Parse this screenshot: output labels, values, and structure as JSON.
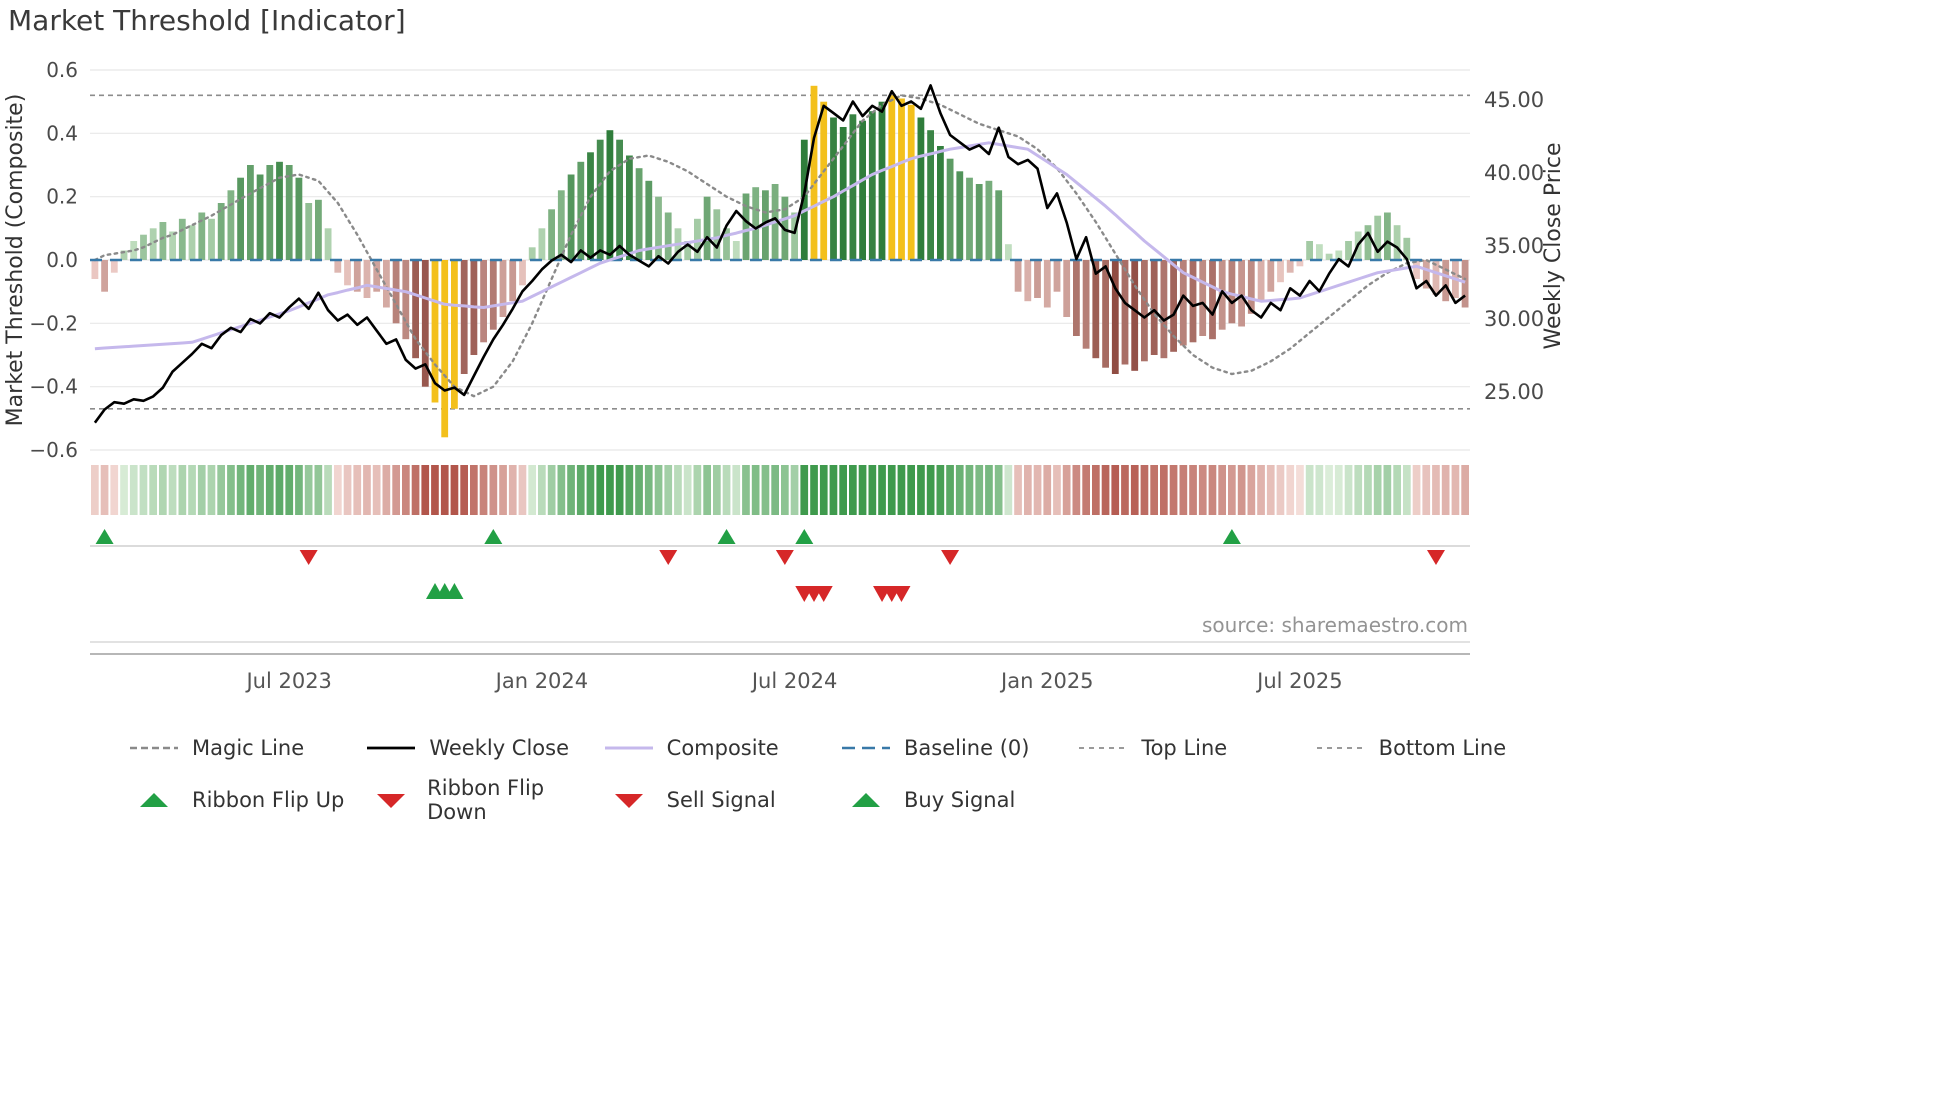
{
  "title": "Market Threshold [Indicator]",
  "source_text": "source: sharemaestro.com",
  "axes": {
    "left_label": "Market Threshold (Composite)",
    "right_label": "Weekly Close Price",
    "left_ticks": [
      {
        "label": "0.6",
        "value": 0.6
      },
      {
        "label": "0.4",
        "value": 0.4
      },
      {
        "label": "0.2",
        "value": 0.2
      },
      {
        "label": "0.0",
        "value": 0.0
      },
      {
        "label": "−0.2",
        "value": -0.2
      },
      {
        "label": "−0.4",
        "value": -0.4
      },
      {
        "label": "−0.6",
        "value": -0.6
      }
    ],
    "right_ticks": [
      {
        "label": "45.00",
        "value": 45
      },
      {
        "label": "40.00",
        "value": 40
      },
      {
        "label": "35.00",
        "value": 35
      },
      {
        "label": "30.00",
        "value": 30
      },
      {
        "label": "25.00",
        "value": 25
      }
    ],
    "x_ticks": [
      {
        "label": "Jul 2023",
        "week": 20
      },
      {
        "label": "Jan 2024",
        "week": 46
      },
      {
        "label": "Jul 2024",
        "week": 72
      },
      {
        "label": "Jan 2025",
        "week": 98
      },
      {
        "label": "Jul 2025",
        "week": 124
      }
    ]
  },
  "colors": {
    "bar_green_light": "#cde6ca",
    "bar_green_dark": "#2f7d3b",
    "bar_red_light": "#f3d4cf",
    "bar_red_dark": "#8e4a40",
    "bar_extreme": "#f3c01c",
    "ribbon_green_light": "#e4f2e1",
    "ribbon_green_dark": "#3f9a4d",
    "ribbon_red_light": "#f8e4e0",
    "ribbon_red_dark": "#b2564b",
    "weekly_close": "#000000",
    "composite": "#c5b8ec",
    "magic": "#8a8a8a",
    "baseline": "#3879a8",
    "threshold_lines": "#8c8c8c",
    "signal_up": "#22a045",
    "signal_down": "#d62728",
    "grid": "#e8e8e8"
  },
  "chart_data": {
    "type": "combo",
    "title": "Market Threshold [Indicator]",
    "x_unit": "week_index",
    "weeks": 142,
    "left_axis_range": [
      -0.6,
      0.6
    ],
    "right_axis_ticks": [
      45,
      40,
      35,
      30,
      25
    ],
    "baseline": 0,
    "top_line": 0.52,
    "bottom_line": -0.47,
    "threshold_bars": [
      -0.06,
      -0.1,
      -0.04,
      0.03,
      0.06,
      0.08,
      0.1,
      0.12,
      0.09,
      0.13,
      0.11,
      0.15,
      0.13,
      0.18,
      0.22,
      0.26,
      0.3,
      0.27,
      0.3,
      0.31,
      0.3,
      0.26,
      0.18,
      0.19,
      0.1,
      -0.04,
      -0.08,
      -0.1,
      -0.12,
      -0.1,
      -0.15,
      -0.2,
      -0.25,
      -0.31,
      -0.4,
      -0.45,
      -0.56,
      -0.47,
      -0.36,
      -0.3,
      -0.26,
      -0.22,
      -0.18,
      -0.13,
      -0.08,
      0.04,
      0.1,
      0.16,
      0.22,
      0.27,
      0.31,
      0.34,
      0.38,
      0.41,
      0.38,
      0.33,
      0.29,
      0.25,
      0.2,
      0.15,
      0.1,
      0.06,
      0.13,
      0.2,
      0.16,
      0.1,
      0.06,
      0.21,
      0.23,
      0.22,
      0.24,
      0.2,
      0.15,
      0.38,
      0.55,
      0.5,
      0.45,
      0.42,
      0.46,
      0.44,
      0.47,
      0.5,
      0.52,
      0.51,
      0.49,
      0.45,
      0.41,
      0.36,
      0.32,
      0.28,
      0.26,
      0.24,
      0.25,
      0.22,
      0.05,
      -0.1,
      -0.13,
      -0.12,
      -0.15,
      -0.1,
      -0.18,
      -0.24,
      -0.28,
      -0.31,
      -0.34,
      -0.36,
      -0.33,
      -0.35,
      -0.32,
      -0.3,
      -0.31,
      -0.29,
      -0.27,
      -0.26,
      -0.24,
      -0.25,
      -0.22,
      -0.2,
      -0.21,
      -0.17,
      -0.13,
      -0.1,
      -0.07,
      -0.04,
      -0.02,
      0.06,
      0.05,
      0.02,
      0.03,
      0.06,
      0.09,
      0.11,
      0.14,
      0.15,
      0.11,
      0.07,
      -0.06,
      -0.09,
      -0.11,
      -0.13,
      -0.12,
      -0.15
    ],
    "extreme_bar_indices": [
      35,
      36,
      37,
      74,
      75,
      82,
      83,
      84
    ],
    "weekly_close": [
      22.9,
      23.8,
      24.3,
      24.2,
      24.5,
      24.4,
      24.7,
      25.3,
      26.4,
      27.0,
      27.6,
      28.3,
      28.0,
      28.9,
      29.4,
      29.1,
      30.0,
      29.7,
      30.4,
      30.1,
      30.8,
      31.4,
      30.7,
      31.8,
      30.6,
      29.9,
      30.3,
      29.6,
      30.1,
      29.2,
      28.3,
      28.6,
      27.2,
      26.6,
      26.9,
      25.6,
      25.1,
      25.3,
      24.8,
      26.1,
      27.4,
      28.6,
      29.6,
      30.7,
      31.9,
      32.6,
      33.4,
      34.0,
      34.4,
      33.9,
      34.7,
      34.2,
      34.7,
      34.4,
      35.0,
      34.4,
      34.0,
      33.6,
      34.3,
      33.8,
      34.6,
      35.1,
      34.6,
      35.6,
      34.9,
      36.4,
      37.4,
      36.7,
      36.2,
      36.6,
      36.9,
      36.1,
      35.9,
      38.6,
      42.4,
      44.6,
      44.1,
      43.6,
      44.9,
      43.9,
      44.6,
      44.2,
      45.6,
      44.6,
      44.9,
      44.4,
      46.0,
      44.1,
      42.6,
      42.1,
      41.6,
      41.9,
      41.3,
      43.1,
      41.1,
      40.6,
      40.9,
      40.3,
      37.6,
      38.6,
      36.6,
      34.1,
      35.6,
      33.1,
      33.6,
      32.1,
      31.1,
      30.6,
      30.1,
      30.6,
      29.9,
      30.3,
      31.6,
      30.9,
      31.1,
      30.3,
      31.9,
      31.1,
      31.6,
      30.6,
      30.1,
      31.1,
      30.6,
      32.1,
      31.6,
      32.6,
      31.9,
      33.1,
      34.1,
      33.6,
      35.1,
      35.9,
      34.6,
      35.3,
      34.9,
      34.1,
      32.1,
      32.6,
      31.6,
      32.3,
      31.1,
      31.6
    ],
    "composite": [
      -0.28,
      -0.278,
      -0.276,
      -0.274,
      -0.272,
      -0.27,
      -0.268,
      -0.266,
      -0.264,
      -0.262,
      -0.26,
      -0.25,
      -0.24,
      -0.23,
      -0.22,
      -0.21,
      -0.2,
      -0.19,
      -0.18,
      -0.17,
      -0.16,
      -0.148,
      -0.135,
      -0.123,
      -0.11,
      -0.103,
      -0.095,
      -0.088,
      -0.08,
      -0.085,
      -0.09,
      -0.095,
      -0.1,
      -0.11,
      -0.12,
      -0.13,
      -0.14,
      -0.143,
      -0.145,
      -0.148,
      -0.15,
      -0.145,
      -0.14,
      -0.135,
      -0.13,
      -0.115,
      -0.1,
      -0.085,
      -0.07,
      -0.055,
      -0.04,
      -0.025,
      -0.01,
      0.0,
      0.01,
      0.02,
      0.03,
      0.035,
      0.04,
      0.045,
      0.05,
      0.055,
      0.06,
      0.065,
      0.07,
      0.078,
      0.085,
      0.093,
      0.1,
      0.11,
      0.12,
      0.13,
      0.14,
      0.155,
      0.17,
      0.185,
      0.2,
      0.218,
      0.235,
      0.253,
      0.27,
      0.283,
      0.295,
      0.308,
      0.32,
      0.328,
      0.335,
      0.343,
      0.35,
      0.355,
      0.36,
      0.365,
      0.37,
      0.365,
      0.36,
      0.355,
      0.35,
      0.33,
      0.31,
      0.29,
      0.27,
      0.245,
      0.22,
      0.195,
      0.17,
      0.143,
      0.115,
      0.088,
      0.06,
      0.035,
      0.01,
      -0.015,
      -0.04,
      -0.055,
      -0.07,
      -0.085,
      -0.1,
      -0.108,
      -0.115,
      -0.123,
      -0.13,
      -0.128,
      -0.125,
      -0.123,
      -0.12,
      -0.11,
      -0.1,
      -0.09,
      -0.08,
      -0.07,
      -0.06,
      -0.05,
      -0.04,
      -0.035,
      -0.03,
      -0.025,
      -0.02,
      -0.03,
      -0.04,
      -0.05,
      -0.06,
      -0.07
    ],
    "magic_line": [
      0.0,
      0.015,
      0.02,
      0.025,
      0.03,
      0.04,
      0.055,
      0.07,
      0.08,
      0.095,
      0.11,
      0.125,
      0.14,
      0.158,
      0.175,
      0.193,
      0.21,
      0.227,
      0.243,
      0.26,
      0.265,
      0.27,
      0.26,
      0.25,
      0.215,
      0.18,
      0.13,
      0.08,
      0.025,
      -0.03,
      -0.085,
      -0.14,
      -0.195,
      -0.25,
      -0.29,
      -0.33,
      -0.365,
      -0.4,
      -0.415,
      -0.43,
      -0.415,
      -0.4,
      -0.36,
      -0.32,
      -0.26,
      -0.2,
      -0.13,
      -0.06,
      0.01,
      0.08,
      0.14,
      0.2,
      0.24,
      0.28,
      0.3,
      0.32,
      0.325,
      0.33,
      0.32,
      0.31,
      0.295,
      0.28,
      0.26,
      0.24,
      0.22,
      0.2,
      0.185,
      0.17,
      0.16,
      0.15,
      0.155,
      0.16,
      0.18,
      0.2,
      0.24,
      0.28,
      0.32,
      0.36,
      0.4,
      0.44,
      0.465,
      0.49,
      0.505,
      0.52,
      0.515,
      0.51,
      0.5,
      0.49,
      0.475,
      0.46,
      0.445,
      0.43,
      0.42,
      0.41,
      0.4,
      0.39,
      0.37,
      0.35,
      0.32,
      0.29,
      0.25,
      0.21,
      0.165,
      0.12,
      0.07,
      0.02,
      -0.03,
      -0.08,
      -0.125,
      -0.17,
      -0.205,
      -0.24,
      -0.27,
      -0.3,
      -0.32,
      -0.34,
      -0.35,
      -0.36,
      -0.355,
      -0.35,
      -0.335,
      -0.32,
      -0.3,
      -0.28,
      -0.255,
      -0.23,
      -0.205,
      -0.18,
      -0.155,
      -0.13,
      -0.105,
      -0.08,
      -0.06,
      -0.04,
      -0.025,
      -0.01,
      -0.005,
      0.0,
      -0.015,
      -0.03,
      -0.045,
      -0.06
    ],
    "signals": {
      "ribbon_flip_up": [
        1,
        41,
        65,
        73,
        117
      ],
      "ribbon_flip_down": [
        22,
        59,
        71,
        88,
        138
      ],
      "buy": [
        35,
        36,
        37
      ],
      "sell": [
        73,
        74,
        75,
        81,
        82,
        83
      ]
    }
  },
  "legend": {
    "row1": [
      {
        "label": "Magic Line",
        "glyph": "dash-gray"
      },
      {
        "label": "Weekly Close",
        "glyph": "solid-black"
      },
      {
        "label": "Composite",
        "glyph": "solid-lavender"
      },
      {
        "label": "Baseline (0)",
        "glyph": "dash-blue"
      },
      {
        "label": "Top Line",
        "glyph": "dash-dot-gray"
      },
      {
        "label": "Bottom Line",
        "glyph": "dash-dot-gray"
      }
    ],
    "row2": [
      {
        "label": "Ribbon Flip Up",
        "glyph": "tri-up-green"
      },
      {
        "label": "Ribbon Flip Down",
        "glyph": "tri-down-red"
      },
      {
        "label": "Sell Signal",
        "glyph": "tri-down-red"
      },
      {
        "label": "Buy Signal",
        "glyph": "tri-up-green"
      }
    ]
  }
}
